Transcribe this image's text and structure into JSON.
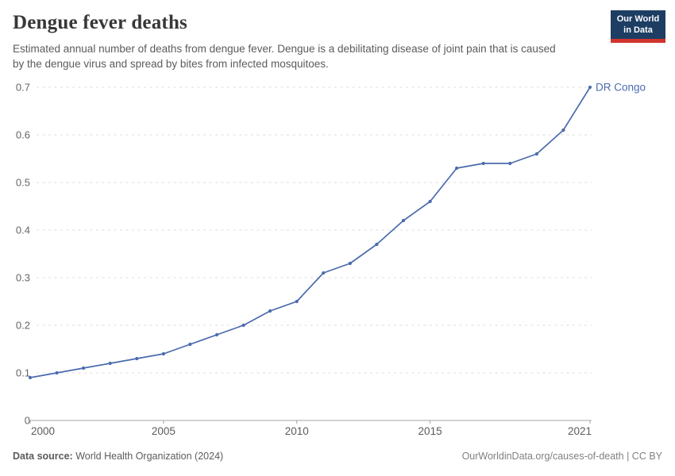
{
  "header": {
    "title": "Dengue fever deaths",
    "subtitle": "Estimated annual number of deaths from dengue fever. Dengue is a debilitating disease of joint pain that is caused by the dengue virus and spread by bites from infected mosquitoes."
  },
  "logo": {
    "line1": "Our World",
    "line2": "in Data",
    "bg_color": "#1d3d63",
    "accent_color": "#d0342c"
  },
  "chart_data": {
    "type": "line",
    "title": "Dengue fever deaths",
    "xlabel": "",
    "ylabel": "",
    "x": [
      2000,
      2001,
      2002,
      2003,
      2004,
      2005,
      2006,
      2007,
      2008,
      2009,
      2010,
      2011,
      2012,
      2013,
      2014,
      2015,
      2016,
      2017,
      2018,
      2019,
      2020,
      2021
    ],
    "series": [
      {
        "name": "DR Congo",
        "color": "#4a6bae",
        "values": [
          0.09,
          0.1,
          0.11,
          0.12,
          0.13,
          0.14,
          0.16,
          0.18,
          0.2,
          0.23,
          0.25,
          0.31,
          0.33,
          0.37,
          0.42,
          0.46,
          0.53,
          0.54,
          0.54,
          0.56,
          0.61,
          0.7
        ]
      }
    ],
    "xlim": [
      2000,
      2021
    ],
    "ylim": [
      0,
      0.7
    ],
    "xticks": [
      2000,
      2005,
      2010,
      2015,
      2021
    ],
    "yticks": [
      "0",
      "0.1",
      "0.2",
      "0.3",
      "0.4",
      "0.5",
      "0.6",
      "0.7"
    ],
    "grid": "horizontal-dashed",
    "legend_position": "end-of-line-label",
    "colors": {
      "grid": "#dddddd",
      "axis": "#a5a5a5",
      "y_tick_label": "#666666",
      "x_tick_label": "#5b5b5b"
    }
  },
  "footer": {
    "source_label": "Data source:",
    "source_text": " World Health Organization (2024)",
    "credit": "OurWorldinData.org/causes-of-death | CC BY"
  }
}
